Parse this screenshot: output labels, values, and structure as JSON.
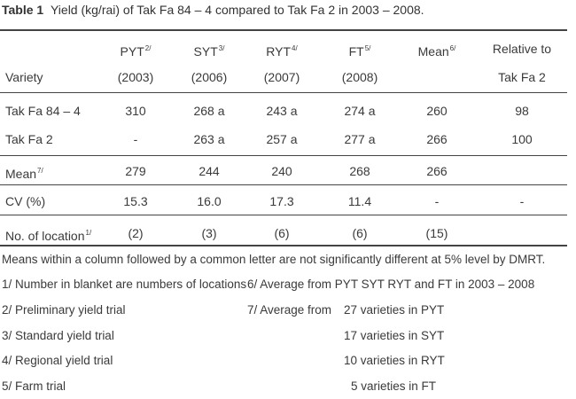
{
  "caption": {
    "label": "Table 1",
    "text": "Yield (kg/rai) of Tak Fa 84 – 4 compared to Tak Fa 2 in 2003 – 2008."
  },
  "header": {
    "variety": "Variety",
    "columns": [
      {
        "name": "PYT",
        "sup": "2/",
        "sub": "(2003)"
      },
      {
        "name": "SYT",
        "sup": "3/",
        "sub": "(2006)"
      },
      {
        "name": "RYT",
        "sup": "4/",
        "sub": "(2007)"
      },
      {
        "name": "FT",
        "sup": "5/",
        "sub": "(2008)"
      },
      {
        "name": "Mean",
        "sup": "6/",
        "sub": ""
      },
      {
        "name": "Relative to",
        "sup": "",
        "sub": "Tak Fa 2"
      }
    ]
  },
  "rows": [
    {
      "label": "Tak Fa 84 – 4",
      "sup": "",
      "cells": [
        "310",
        "268 a",
        "243 a",
        "274 a",
        "260",
        "98"
      ]
    },
    {
      "label": "Tak Fa 2",
      "sup": "",
      "cells": [
        "-",
        "263 a",
        "257 a",
        "277 a",
        "266",
        "100"
      ]
    },
    {
      "label": "Mean",
      "sup": "7/",
      "cells": [
        "279",
        "244",
        "240",
        "268",
        "266",
        ""
      ]
    },
    {
      "label": "CV (%)",
      "sup": "",
      "cells": [
        "15.3",
        "16.0",
        "17.3",
        "11.4",
        "-",
        "-"
      ]
    },
    {
      "label": "No. of location",
      "sup": "1/",
      "cells": [
        "(2)",
        "(3)",
        "(6)",
        "(6)",
        "(15)",
        ""
      ]
    }
  ],
  "footnotes": {
    "dmrt": "Means within a column followed by a common letter are not significantly different at 5% level by DMRT.",
    "left": [
      "1/  Number in blanket are numbers of locations",
      "2/  Preliminary yield trial",
      "3/  Standard yield trial",
      "4/  Regional yield trial",
      "5/  Farm trial"
    ],
    "right_6": "6/  Average from PYT SYT RYT  and  FT in 2003 – 2008",
    "right_7_prefix": "7/  Average from",
    "right_7_items": [
      "27 varieties in PYT",
      "17 varieties in SYT",
      "10 varieties in RYT",
      "5 varieties in FT"
    ]
  }
}
